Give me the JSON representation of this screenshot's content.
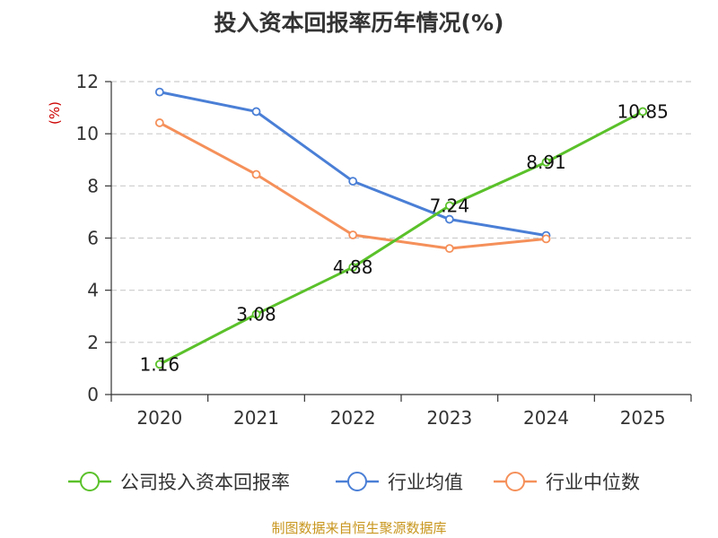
{
  "chart_data": {
    "type": "line",
    "title": "投入资本回报率历年情况(%)",
    "ylabel": "(%)",
    "xlabel": "",
    "categories": [
      "2020",
      "2021",
      "2022",
      "2023",
      "2024",
      "2025"
    ],
    "ylim": [
      0,
      12
    ],
    "yticks": [
      0,
      2,
      4,
      6,
      8,
      10,
      12
    ],
    "grid": true,
    "legend_position": "bottom",
    "series": [
      {
        "name": "公司投入资本回报率",
        "color": "#5ac12a",
        "values": [
          1.16,
          3.08,
          4.88,
          7.24,
          8.91,
          10.85
        ],
        "labels": [
          "1.16",
          "3.08",
          "4.88",
          "7.24",
          "8.91",
          "10.85"
        ]
      },
      {
        "name": "行业均值",
        "color": "#4a7fd6",
        "values": [
          11.6,
          10.85,
          8.18,
          6.72,
          6.1,
          null
        ]
      },
      {
        "name": "行业中位数",
        "color": "#f5905a",
        "values": [
          10.42,
          8.44,
          6.12,
          5.6,
          5.97,
          null
        ]
      }
    ]
  },
  "colors": {
    "axis": "#333333",
    "grid": "#cccccc",
    "unit": "#cc0000",
    "source": "#c8961e"
  },
  "source_text": "制图数据来自恒生聚源数据库"
}
